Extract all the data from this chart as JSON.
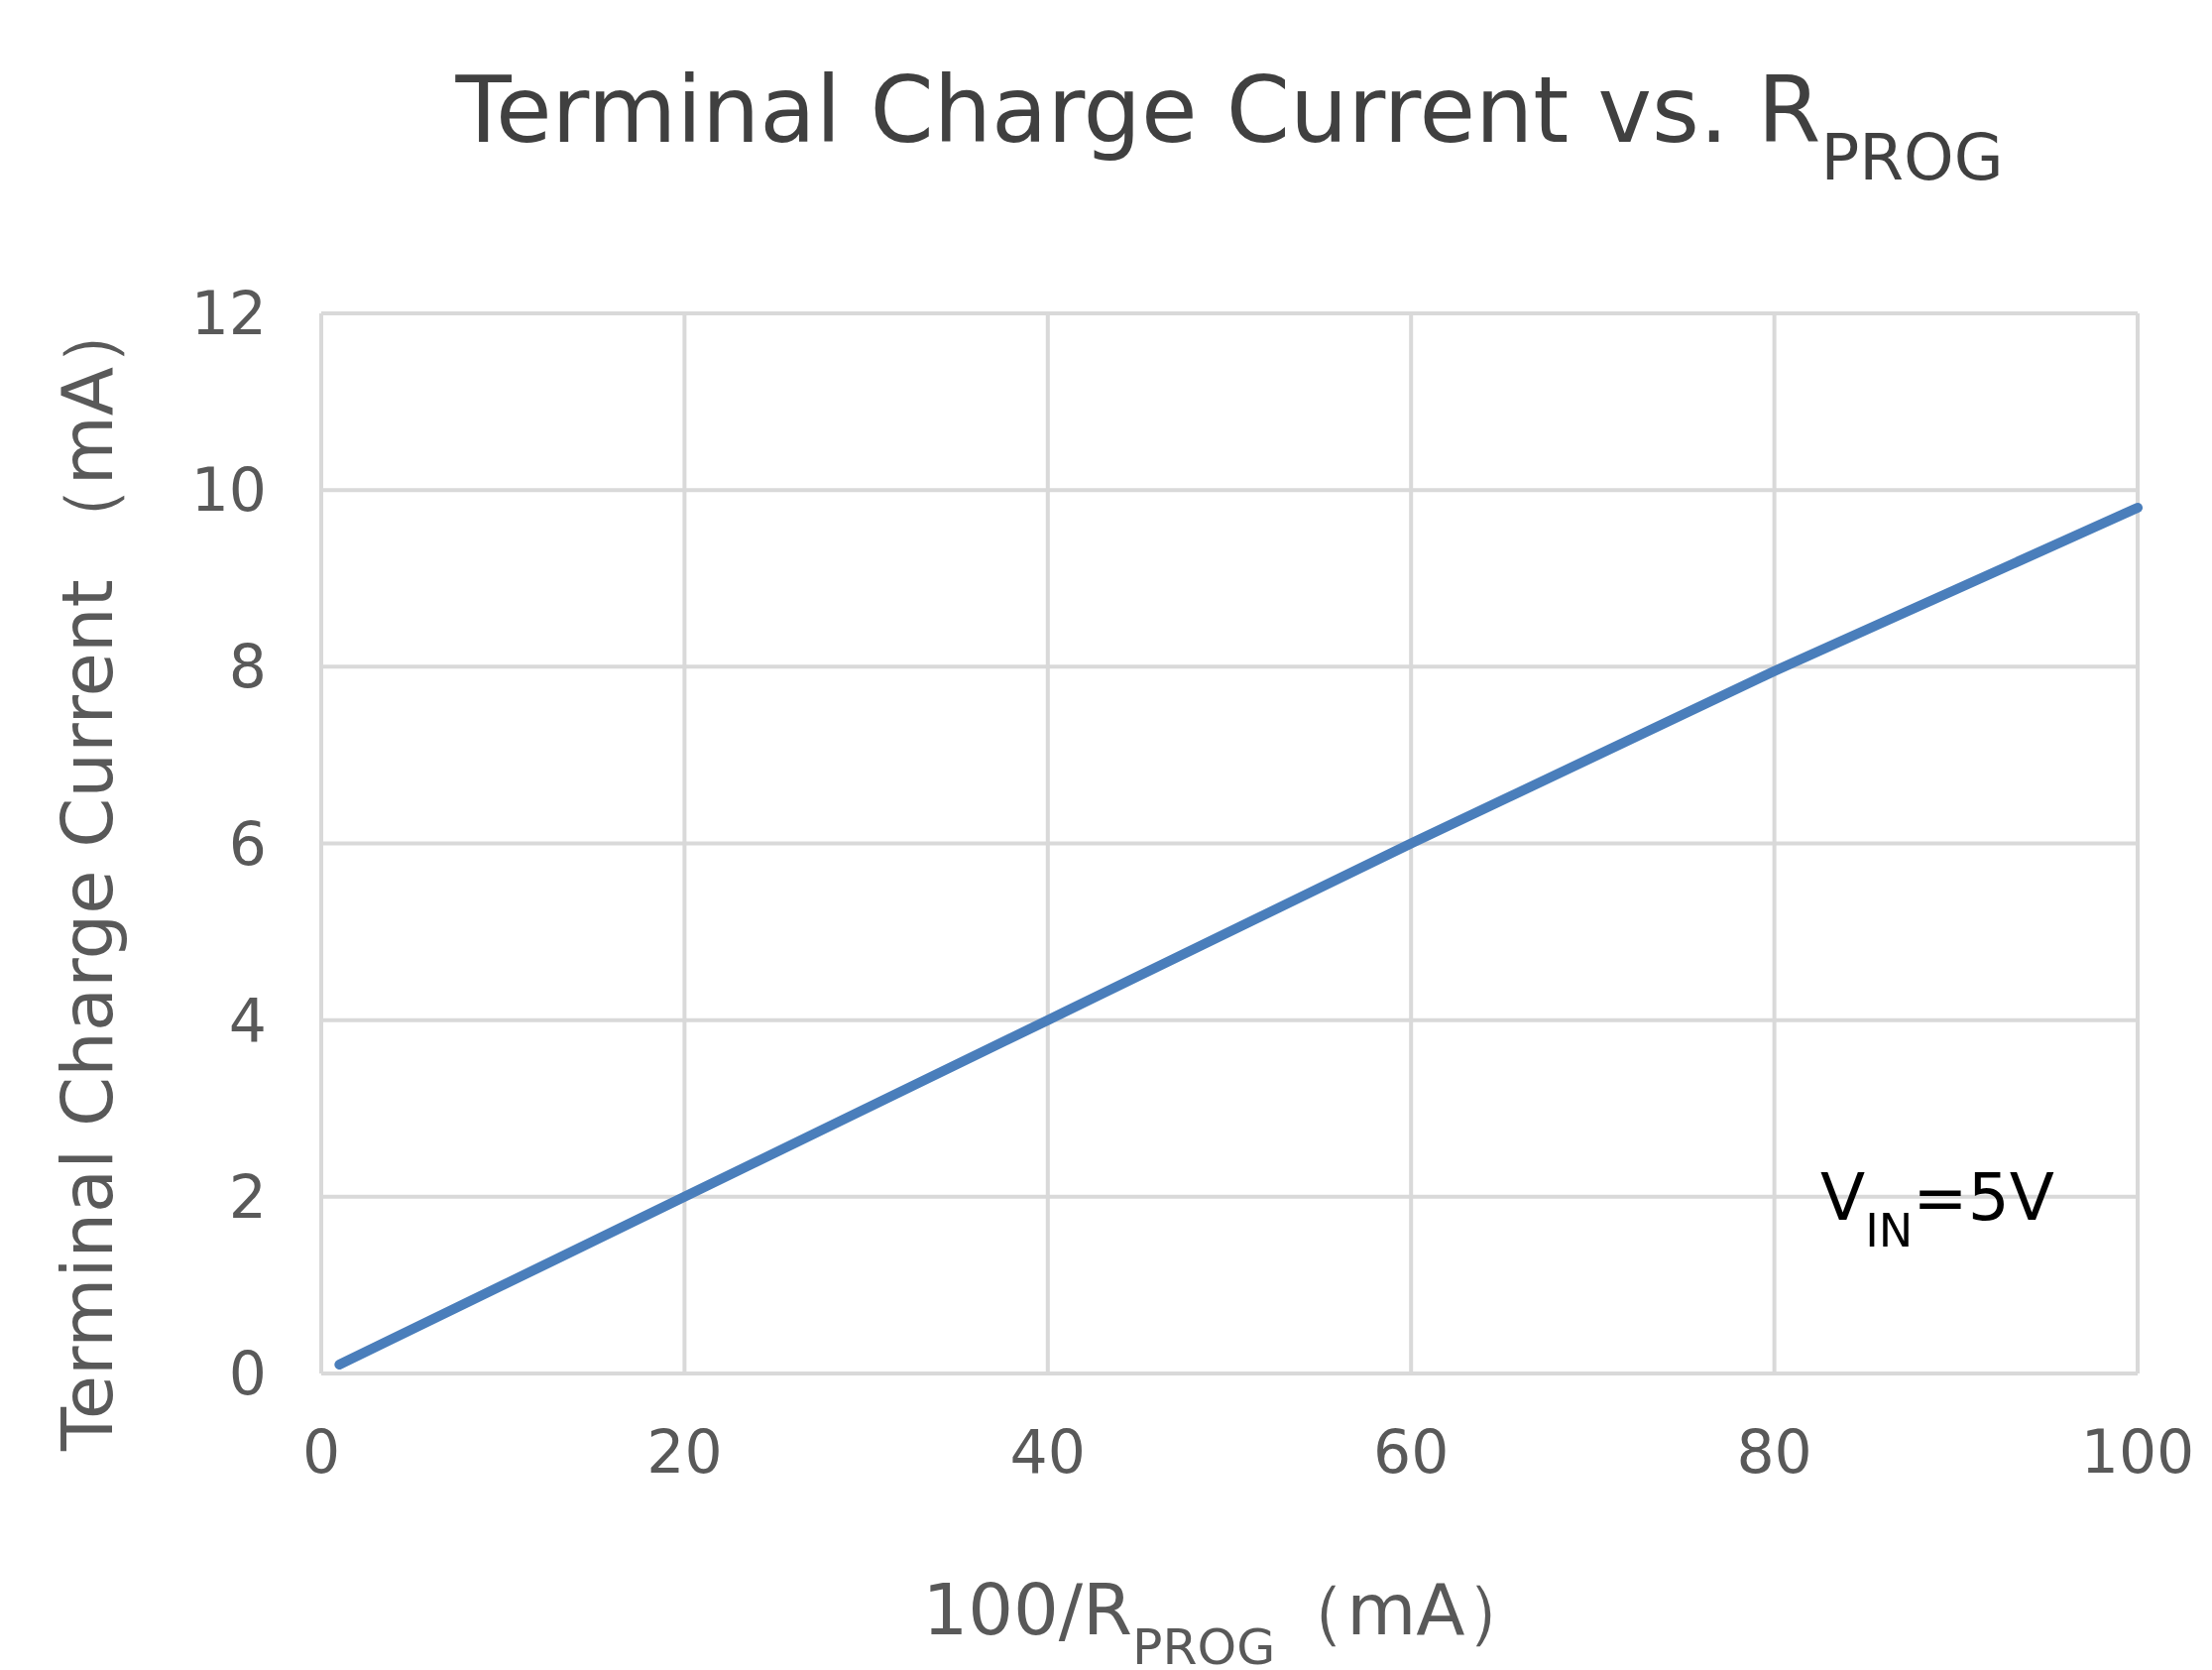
{
  "chart_data": {
    "type": "line",
    "title": "Terminal Charge Current vs. R$_{PROG}$",
    "xlabel": "100/R$_{PROG}$（mA）",
    "ylabel": "Terminal Charge Current （mA）",
    "annotations": [
      "V$_{IN}$=5V"
    ],
    "x": [
      1,
      20,
      40,
      60,
      80,
      100
    ],
    "series": [
      {
        "color": "#4a7ebb",
        "values": [
          0.1,
          2,
          4,
          6,
          7.95,
          9.8
        ]
      }
    ],
    "xlim": [
      0,
      100
    ],
    "xticks": [
      0,
      20,
      40,
      60,
      80,
      100
    ],
    "ylim": [
      0,
      12
    ],
    "yticks": [
      0,
      2,
      4,
      6,
      8,
      10,
      12
    ],
    "grid": true,
    "marker": "none",
    "line_style": "solid"
  }
}
